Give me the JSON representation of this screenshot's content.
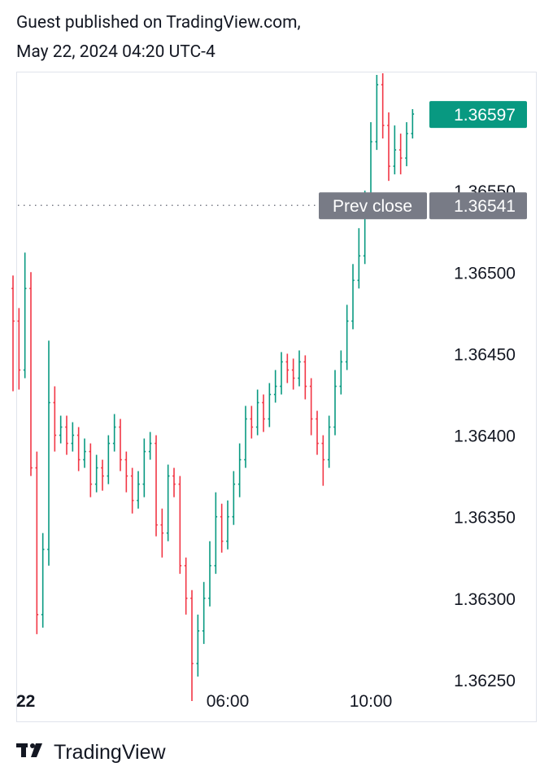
{
  "header": {
    "line1": "Guest published on TradingView.com,",
    "line2": "May 22, 2024 04:20 UTC-4"
  },
  "footer": {
    "brand": "TradingView"
  },
  "chart_data": {
    "type": "ohlc",
    "up_color": "#089981",
    "down_color": "#f23645",
    "x": [
      "00:00",
      "00:10",
      "00:20",
      "00:30",
      "00:40",
      "00:50",
      "01:00",
      "01:10",
      "01:20",
      "01:30",
      "01:40",
      "01:50",
      "02:00",
      "02:10",
      "02:20",
      "02:30",
      "02:40",
      "02:50",
      "03:00",
      "03:10",
      "03:20",
      "03:30",
      "03:40",
      "03:50",
      "04:00",
      "04:10",
      "04:20",
      "04:30",
      "04:40",
      "04:50",
      "05:00",
      "05:10",
      "05:20",
      "05:30",
      "05:40",
      "05:50",
      "06:00",
      "06:10",
      "06:20",
      "06:30",
      "06:40",
      "06:50",
      "07:00",
      "07:10",
      "07:20",
      "07:30",
      "07:40",
      "07:50",
      "08:00",
      "08:10",
      "08:20",
      "08:30",
      "08:40",
      "08:50",
      "09:00",
      "09:10",
      "09:20",
      "09:30",
      "09:40",
      "09:50",
      "10:00",
      "10:10",
      "10:20",
      "10:30",
      "10:40",
      "10:50",
      "11:00",
      "11:10"
    ],
    "open": [
      1.3649,
      1.3647,
      1.3644,
      1.3649,
      1.3638,
      1.3629,
      1.3633,
      1.3642,
      1.364,
      1.36405,
      1.36395,
      1.364,
      1.36385,
      1.3639,
      1.3637,
      1.3638,
      1.36375,
      1.36395,
      1.36405,
      1.36385,
      1.36375,
      1.3636,
      1.3637,
      1.3639,
      1.36395,
      1.36345,
      1.3634,
      1.36375,
      1.3637,
      1.3632,
      1.363,
      1.3626,
      1.3628,
      1.363,
      1.3632,
      1.3635,
      1.36335,
      1.3635,
      1.3637,
      1.36385,
      1.3641,
      1.36405,
      1.3642,
      1.3641,
      1.36425,
      1.3643,
      1.36445,
      1.3644,
      1.36435,
      1.36445,
      1.3643,
      1.3641,
      1.36395,
      1.36385,
      1.36405,
      1.3643,
      1.36445,
      1.3647,
      1.36495,
      1.3651,
      1.3654,
      1.3658,
      1.36615,
      1.3659,
      1.36565,
      1.36575,
      1.3657,
      1.36585
    ],
    "high": [
      1.36498,
      1.36478,
      1.36512,
      1.365,
      1.3639,
      1.3634,
      1.36458,
      1.3643,
      1.36412,
      1.36412,
      1.36408,
      1.36405,
      1.36398,
      1.36395,
      1.36388,
      1.36385,
      1.364,
      1.36413,
      1.3641,
      1.3639,
      1.3638,
      1.36378,
      1.36398,
      1.36402,
      1.364,
      1.36355,
      1.36382,
      1.3638,
      1.36375,
      1.36325,
      1.36305,
      1.3629,
      1.3631,
      1.36335,
      1.36365,
      1.36358,
      1.3636,
      1.36378,
      1.36395,
      1.36418,
      1.36418,
      1.36428,
      1.36425,
      1.36432,
      1.3644,
      1.36451,
      1.3645,
      1.36447,
      1.36452,
      1.36449,
      1.36435,
      1.36415,
      1.364,
      1.36412,
      1.3644,
      1.36452,
      1.3648,
      1.36505,
      1.36527,
      1.3655,
      1.36592,
      1.36621,
      1.36622,
      1.36598,
      1.3659,
      1.36585,
      1.36592,
      1.366
    ],
    "low": [
      1.36427,
      1.36428,
      1.36435,
      1.36375,
      1.36278,
      1.36282,
      1.3632,
      1.3639,
      1.36395,
      1.36388,
      1.3639,
      1.36378,
      1.3638,
      1.36362,
      1.36365,
      1.36366,
      1.3637,
      1.3639,
      1.36378,
      1.36365,
      1.36352,
      1.36355,
      1.36362,
      1.36385,
      1.36338,
      1.36325,
      1.36335,
      1.36362,
      1.36315,
      1.3629,
      1.36237,
      1.36252,
      1.36272,
      1.36295,
      1.36315,
      1.36328,
      1.3633,
      1.36345,
      1.36362,
      1.3638,
      1.36398,
      1.364,
      1.36402,
      1.36405,
      1.3642,
      1.36425,
      1.36432,
      1.36428,
      1.3643,
      1.36422,
      1.364,
      1.36388,
      1.36369,
      1.3638,
      1.364,
      1.36425,
      1.3644,
      1.36465,
      1.3649,
      1.36505,
      1.36535,
      1.36575,
      1.36582,
      1.36556,
      1.3656,
      1.3656,
      1.36565,
      1.36582
    ],
    "close": [
      1.3647,
      1.3644,
      1.3649,
      1.3638,
      1.3629,
      1.3633,
      1.3642,
      1.364,
      1.36405,
      1.36395,
      1.364,
      1.36385,
      1.3639,
      1.3637,
      1.3638,
      1.36375,
      1.36395,
      1.36405,
      1.36385,
      1.36375,
      1.3636,
      1.3637,
      1.3639,
      1.36395,
      1.36345,
      1.3634,
      1.36375,
      1.3637,
      1.3632,
      1.363,
      1.3626,
      1.3628,
      1.363,
      1.3632,
      1.3635,
      1.36335,
      1.3635,
      1.3637,
      1.36385,
      1.3641,
      1.36405,
      1.3642,
      1.3641,
      1.36425,
      1.3643,
      1.36445,
      1.3644,
      1.36435,
      1.36445,
      1.3643,
      1.3641,
      1.36395,
      1.36385,
      1.36405,
      1.3643,
      1.36445,
      1.3647,
      1.36495,
      1.3651,
      1.3654,
      1.3658,
      1.36615,
      1.3659,
      1.36565,
      1.36575,
      1.3657,
      1.36585,
      1.36597
    ],
    "ylim": [
      1.36224,
      1.36623
    ],
    "yticks": [
      {
        "value": 1.3625,
        "label": "1.36250"
      },
      {
        "value": 1.363,
        "label": "1.36300"
      },
      {
        "value": 1.3635,
        "label": "1.36350"
      },
      {
        "value": 1.364,
        "label": "1.36400"
      },
      {
        "value": 1.3645,
        "label": "1.36450"
      },
      {
        "value": 1.365,
        "label": "1.36500"
      },
      {
        "value": 1.3655,
        "label": "1.36550"
      }
    ],
    "xticks": [
      {
        "value": "00:00",
        "label": "22"
      },
      "06:00",
      "10:00"
    ],
    "prev_close": {
      "label": "Prev close",
      "value": 1.36541,
      "color": "#787b86"
    }
  }
}
